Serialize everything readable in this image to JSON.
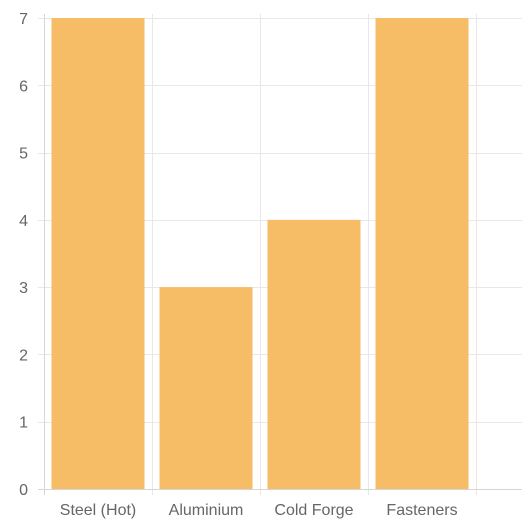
{
  "chart_data": {
    "type": "bar",
    "categories": [
      "Steel (Hot)",
      "Aluminium",
      "Cold Forge",
      "Fasteners"
    ],
    "values": [
      7,
      3,
      4,
      7
    ],
    "ylim": [
      0,
      7
    ],
    "yticks": [
      0,
      1,
      2,
      3,
      4,
      5,
      6,
      7
    ],
    "grid": true,
    "legend": "none",
    "colors": {
      "bar": "#f6bd66",
      "grid": "#e8e8e8",
      "axis": "#d6d6d6",
      "text": "#666666"
    }
  }
}
